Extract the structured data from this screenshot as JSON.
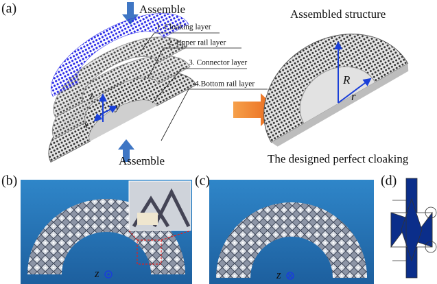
{
  "panel_a": {
    "label": "(a)",
    "assemble_top": "Assemble",
    "assemble_bottom": "Assemble",
    "layers": [
      "1. Cloaking layer",
      "2. Upper rail layer",
      "3. Connector layer",
      "4.Bottom rail layer"
    ],
    "axes": {
      "z": "z",
      "y": "y",
      "x": "x"
    },
    "assembled_title": "Assembled structure",
    "radius_outer": "R",
    "radius_inner": "r",
    "caption": "The designed perfect cloaking"
  },
  "panel_b": {
    "label": "(b)",
    "axis": "z"
  },
  "panel_c": {
    "label": "(c)",
    "axis": "z"
  },
  "panel_d": {
    "label": "(d)"
  }
}
